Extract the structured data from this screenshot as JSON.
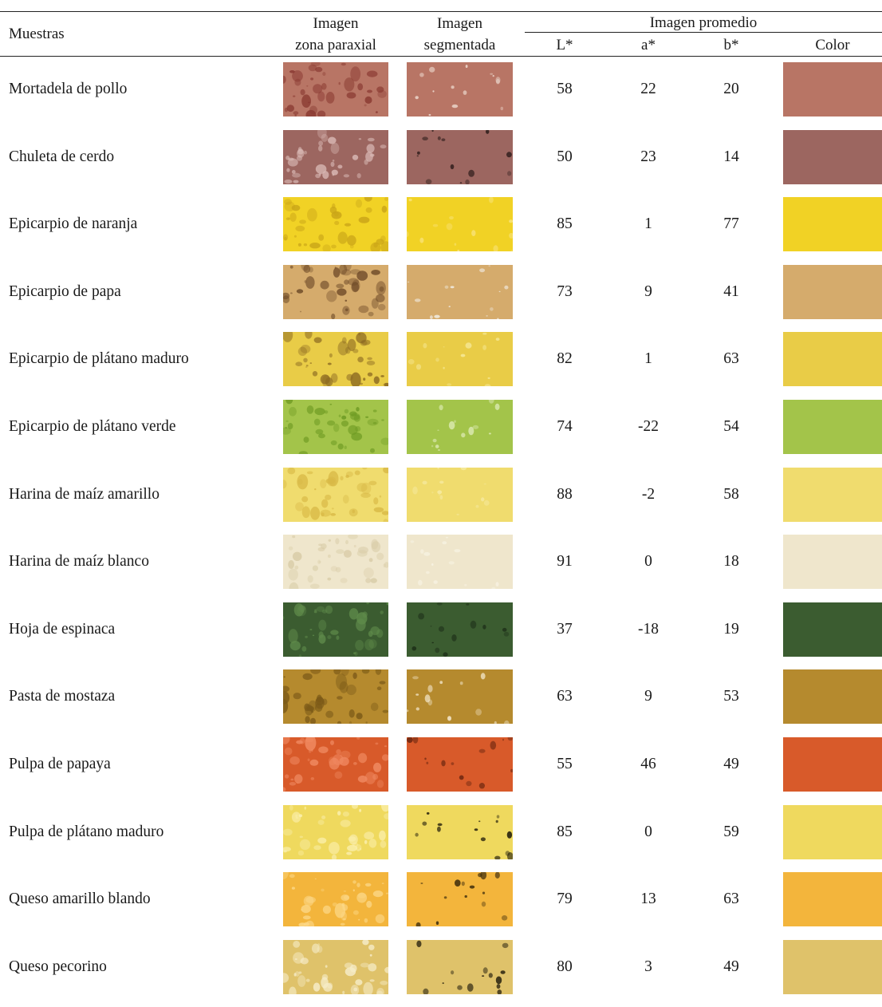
{
  "header": {
    "muestras": "Muestras",
    "imagen_paraxial_l1": "Imagen",
    "imagen_paraxial_l2": "zona paraxial",
    "imagen_segmentada_l1": "Imagen",
    "imagen_segmentada_l2": "segmentada",
    "imagen_promedio": "Imagen promedio",
    "col_L": "L*",
    "col_a": "a*",
    "col_b": "b*",
    "col_color": "Color"
  },
  "rows": [
    {
      "name": "Mortadela de pollo",
      "L": "58",
      "a": "22",
      "b": "20",
      "color": "#b87565",
      "para_spot": "#8a3a32",
      "seg_spot": "#f4e6dc"
    },
    {
      "name": "Chuleta de cerdo",
      "L": "50",
      "a": "23",
      "b": "14",
      "color": "#9c6660",
      "para_spot": "#d9b8b4",
      "seg_spot": "#2a1a18"
    },
    {
      "name": "Epicarpio de naranja",
      "L": "85",
      "a": "1",
      "b": "77",
      "color": "#f1d225",
      "para_spot": "#c9a418",
      "seg_spot": "#fbe78a"
    },
    {
      "name": "Epicarpio de papa",
      "L": "73",
      "a": "9",
      "b": "41",
      "color": "#d5ab6c",
      "para_spot": "#6e4a28",
      "seg_spot": "#f2eee6"
    },
    {
      "name": "Epicarpio de plátano maduro",
      "L": "82",
      "a": "1",
      "b": "63",
      "color": "#e9cc47",
      "para_spot": "#8c6a22",
      "seg_spot": "#f6ea9a"
    },
    {
      "name": "Epicarpio de plátano verde",
      "L": "74",
      "a": "-22",
      "b": "54",
      "color": "#a3c44a",
      "para_spot": "#6d9a22",
      "seg_spot": "#e4efc0"
    },
    {
      "name": "Harina de maíz amarillo",
      "L": "88",
      "a": "-2",
      "b": "58",
      "color": "#f0dc6e",
      "para_spot": "#d8b845",
      "seg_spot": "#f7eca8"
    },
    {
      "name": "Harina de maíz blanco",
      "L": "91",
      "a": "0",
      "b": "18",
      "color": "#efe6cc",
      "para_spot": "#d8cba6",
      "seg_spot": "#f8f3e4"
    },
    {
      "name": "Hoja de espinaca",
      "L": "37",
      "a": "-18",
      "b": "19",
      "color": "#3b5c30",
      "para_spot": "#5e8a4a",
      "seg_spot": "#1a2a16"
    },
    {
      "name": "Pasta de mostaza",
      "L": "63",
      "a": "9",
      "b": "53",
      "color": "#b58a2e",
      "para_spot": "#7c5a18",
      "seg_spot": "#f6ecd4"
    },
    {
      "name": "Pulpa de papaya",
      "L": "55",
      "a": "46",
      "b": "49",
      "color": "#d85a2a",
      "para_spot": "#f08a62",
      "seg_spot": "#5a1e0c"
    },
    {
      "name": "Pulpa de plátano maduro",
      "L": "85",
      "a": "0",
      "b": "59",
      "color": "#efd95e",
      "para_spot": "#fbf0b0",
      "seg_spot": "#161206"
    },
    {
      "name": "Queso amarillo blando",
      "L": "79",
      "a": "13",
      "b": "63",
      "color": "#f3b53c",
      "para_spot": "#fcd888",
      "seg_spot": "#3a2a0c"
    },
    {
      "name": "Queso pecorino",
      "L": "80",
      "a": "3",
      "b": "49",
      "color": "#dfc26a",
      "para_spot": "#f6ecc8",
      "seg_spot": "#161206"
    }
  ]
}
